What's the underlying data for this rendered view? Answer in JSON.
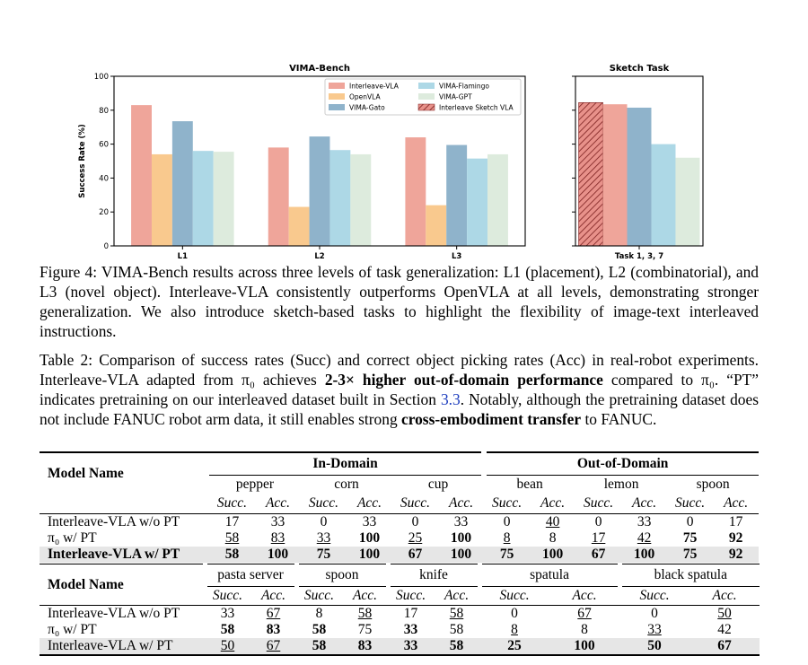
{
  "chart_data": [
    {
      "type": "bar",
      "title": "VIMA-Bench",
      "ylabel": "Success Rate (%)",
      "categories": [
        "L1",
        "L2",
        "L3"
      ],
      "series": [
        {
          "name": "Interleave-VLA",
          "color": "#EFA59A",
          "values": [
            83,
            58,
            64
          ]
        },
        {
          "name": "OpenVLA",
          "color": "#F9C98E",
          "values": [
            54,
            23,
            24
          ]
        },
        {
          "name": "VIMA-Gato",
          "color": "#8FB3CB",
          "values": [
            73.5,
            64.5,
            59.5
          ]
        },
        {
          "name": "VIMA-Flamingo",
          "color": "#ADD8E6",
          "values": [
            56,
            56.5,
            51.5
          ]
        },
        {
          "name": "VIMA-GPT",
          "color": "#DDEBDD",
          "values": [
            55.5,
            54,
            54
          ]
        }
      ],
      "ylim": [
        0,
        100
      ],
      "yticks": [
        0,
        20,
        40,
        60,
        80,
        100
      ],
      "legend": "upper right"
    },
    {
      "type": "bar",
      "title": "Sketch Task",
      "categories": [
        "Task 1, 3, 7"
      ],
      "series": [
        {
          "name": "Interleave Sketch VLA",
          "color": "#E8918A",
          "hatch": true,
          "values": [
            84.5
          ]
        },
        {
          "name": "Interleave-VLA",
          "color": "#EFA59A",
          "values": [
            83.5
          ]
        },
        {
          "name": "VIMA-Gato",
          "color": "#8FB3CB",
          "values": [
            81.5
          ]
        },
        {
          "name": "VIMA-Flamingo",
          "color": "#ADD8E6",
          "values": [
            60
          ]
        },
        {
          "name": "VIMA-GPT",
          "color": "#DDEBDD",
          "values": [
            52
          ]
        }
      ],
      "ylim": [
        0,
        100
      ]
    }
  ],
  "figure_caption": "Figure 4: VIMA-Bench results across three levels of task generalization: L1 (placement), L2 (combinatorial), and L3 (novel object). Interleave-VLA consistently outperforms OpenVLA at all levels, demonstrating stronger generalization. We also introduce sketch-based tasks to highlight the flexibility of image-text interleaved instructions.",
  "table_caption": [
    "Table 2: Comparison of success rates (Succ) and correct object picking rates (Acc) in real-robot experiments. Interleave-VLA adapted from π₀ achieves ",
    "2-3× higher out-of-domain performance",
    " compared to π₀. “PT” indicates pretraining on our interleaved dataset built in Section ",
    "3.3",
    ". Notably, although the pretraining dataset does not include FANUC robot arm data, it still enables strong ",
    "cross-embodiment transfer",
    " to FANUC."
  ],
  "tables": [
    {
      "model_header": "Model Name",
      "groups": [
        "In-Domain",
        "Out-of-Domain"
      ],
      "objects": [
        "pepper",
        "corn",
        "cup",
        "bean",
        "lemon",
        "spoon"
      ],
      "subheaders": [
        "Succ.",
        "Acc.",
        "Succ.",
        "Acc.",
        "Succ.",
        "Acc.",
        "Succ.",
        "Acc.",
        "Succ.",
        "Acc.",
        "Succ.",
        "Acc."
      ],
      "rows": [
        {
          "name": "Interleave-VLA w/o PT",
          "values": [
            17,
            33,
            0,
            33,
            0,
            33,
            0,
            40,
            0,
            33,
            0,
            17
          ]
        },
        {
          "name": "π₀ w/ PT",
          "values": [
            58,
            83,
            33,
            100,
            25,
            100,
            8,
            8,
            17,
            42,
            75,
            92
          ]
        },
        {
          "name": "Interleave-VLA w/ PT",
          "values": [
            58,
            100,
            75,
            100,
            67,
            100,
            75,
            100,
            67,
            100,
            75,
            92
          ]
        }
      ]
    },
    {
      "model_header": "Model Name",
      "objects": [
        "pasta server",
        "spoon",
        "knife",
        "spatula",
        "black spatula"
      ],
      "subheaders": [
        "Succ.",
        "Acc.",
        "Succ.",
        "Acc.",
        "Succ.",
        "Acc.",
        "Succ.",
        "Acc.",
        "Succ.",
        "Acc."
      ],
      "rows": [
        {
          "name": "Interleave-VLA w/o PT",
          "values": [
            33,
            67,
            8,
            58,
            17,
            58,
            0,
            67,
            0,
            50
          ]
        },
        {
          "name": "π₀ w/ PT",
          "values": [
            58,
            83,
            58,
            75,
            33,
            58,
            8,
            8,
            33,
            42
          ]
        },
        {
          "name": "Interleave-VLA w/ PT",
          "values": [
            50,
            67,
            58,
            83,
            33,
            58,
            25,
            100,
            50,
            67
          ]
        }
      ]
    }
  ]
}
